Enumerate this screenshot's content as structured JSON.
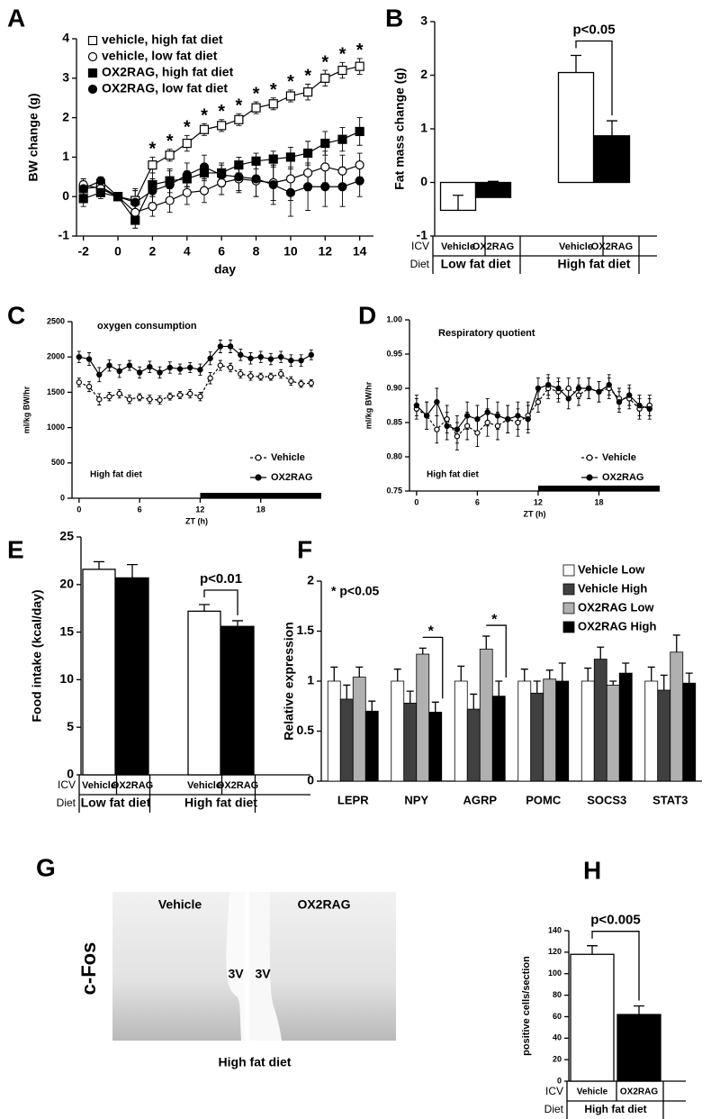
{
  "chart_data": [
    {
      "type": "line",
      "panel": "A",
      "xlabel": "day",
      "ylabel": "BW change (g)",
      "x": [
        -2,
        -1,
        0,
        1,
        2,
        3,
        4,
        5,
        6,
        7,
        8,
        9,
        10,
        11,
        12,
        13,
        14
      ],
      "xlim": [
        -2.4,
        14.8
      ],
      "xticks": [
        -2,
        0,
        2,
        4,
        6,
        8,
        10,
        12,
        14
      ],
      "ylim": [
        -1,
        4
      ],
      "yticks": [
        -1,
        0,
        1,
        2,
        3,
        4
      ],
      "series": [
        {
          "name": "vehicle, high fat diet",
          "marker": "square",
          "color": "#000000",
          "fill": "#ffffff",
          "values": [
            0.2,
            0.25,
            0,
            -0.1,
            0.8,
            1.05,
            1.35,
            1.7,
            1.8,
            1.95,
            2.25,
            2.35,
            2.55,
            2.65,
            3.0,
            3.2,
            3.3
          ],
          "errors": [
            0.15,
            0.15,
            0,
            0.3,
            0.2,
            0.15,
            0.2,
            0.15,
            0.15,
            0.15,
            0.15,
            0.15,
            0.15,
            0.2,
            0.2,
            0.2,
            0.2
          ]
        },
        {
          "name": "vehicle, low fat diet",
          "marker": "circle",
          "color": "#000000",
          "fill": "#ffffff",
          "values": [
            0.3,
            0.2,
            0,
            -0.4,
            -0.25,
            -0.1,
            0.1,
            0.15,
            0.35,
            0.45,
            0.4,
            0.35,
            0.45,
            0.6,
            0.75,
            0.65,
            0.8
          ],
          "errors": [
            0.15,
            0.1,
            0,
            0.2,
            0.25,
            0.3,
            0.3,
            0.3,
            0.3,
            0.35,
            0.4,
            0.45,
            0.55,
            0.45,
            0.4,
            0.4,
            0.3
          ]
        },
        {
          "name": "OX2RAG, high fat diet",
          "marker": "square",
          "color": "#000000",
          "fill": "#000000",
          "values": [
            -0.05,
            0.1,
            0,
            -0.6,
            0.3,
            0.4,
            0.45,
            0.6,
            0.6,
            0.8,
            0.9,
            0.95,
            1.0,
            1.1,
            1.35,
            1.45,
            1.65
          ],
          "errors": [
            0.2,
            0.15,
            0,
            0.2,
            0.3,
            0.3,
            0.2,
            0.2,
            0.2,
            0.2,
            0.2,
            0.2,
            0.25,
            0.3,
            0.3,
            0.3,
            0.35
          ]
        },
        {
          "name": "OX2RAG, low fat diet",
          "marker": "circle",
          "color": "#000000",
          "fill": "#000000",
          "values": [
            0.2,
            0.4,
            0,
            -0.15,
            0.15,
            0.3,
            0.55,
            0.75,
            0.55,
            0.5,
            0.45,
            0.3,
            0.1,
            0.25,
            0.25,
            0.25,
            0.4
          ],
          "errors": [
            0.2,
            0.1,
            0,
            0.3,
            0.3,
            0.35,
            0.3,
            0.3,
            0.3,
            0.35,
            0.45,
            0.5,
            0.6,
            0.6,
            0.5,
            0.5,
            0.4
          ]
        }
      ],
      "annotations": [
        {
          "x": 2,
          "text": "*"
        },
        {
          "x": 3,
          "text": "*"
        },
        {
          "x": 4,
          "text": "*"
        },
        {
          "x": 5,
          "text": "*"
        },
        {
          "x": 6,
          "text": "*"
        },
        {
          "x": 7,
          "text": "*"
        },
        {
          "x": 8,
          "text": "*"
        },
        {
          "x": 9,
          "text": "*"
        },
        {
          "x": 10,
          "text": "*"
        },
        {
          "x": 11,
          "text": "*"
        },
        {
          "x": 12,
          "text": "*"
        },
        {
          "x": 13,
          "text": "*"
        },
        {
          "x": 14,
          "text": "*"
        }
      ]
    },
    {
      "type": "bar",
      "panel": "B",
      "ylabel": "Fat mass change (g)",
      "ylim": [
        -1,
        3
      ],
      "yticks": [
        -1,
        0,
        1,
        2,
        3
      ],
      "row_labels": [
        "ICV",
        "Diet"
      ],
      "categories": [
        "Vehicle",
        "OX2RAG",
        "Vehicle",
        "OX2RAG"
      ],
      "groups": [
        "Low fat diet",
        "High fat diet"
      ],
      "values": [
        -0.52,
        -0.28,
        2.05,
        0.87
      ],
      "errors": [
        0.28,
        0.3,
        0.32,
        0.28
      ],
      "colors": [
        "#ffffff",
        "#000000",
        "#ffffff",
        "#000000"
      ],
      "comparison": "p<0.05"
    },
    {
      "type": "line",
      "panel": "C",
      "title": "oxygen consumption",
      "note": "High fat diet",
      "xlabel": "ZT (h)",
      "ylabel": "ml/kg BW/hr",
      "x": [
        0,
        1,
        2,
        3,
        4,
        5,
        6,
        7,
        8,
        9,
        10,
        11,
        12,
        13,
        14,
        15,
        16,
        17,
        18,
        19,
        20,
        21,
        22,
        23
      ],
      "xlim": [
        -0.7,
        24
      ],
      "xticks": [
        0,
        6,
        12,
        18
      ],
      "ylim": [
        0,
        2500
      ],
      "yticks": [
        0,
        500,
        1000,
        1500,
        2000,
        2500
      ],
      "dark_period": [
        12,
        24
      ],
      "series": [
        {
          "name": "Vehicle",
          "marker": "circle",
          "color": "#000000",
          "fill": "#ffffff",
          "dash": true,
          "values": [
            1640,
            1580,
            1400,
            1440,
            1480,
            1400,
            1430,
            1400,
            1390,
            1440,
            1460,
            1480,
            1440,
            1700,
            1880,
            1850,
            1760,
            1730,
            1720,
            1720,
            1760,
            1660,
            1620,
            1630
          ],
          "errors": [
            60,
            70,
            80,
            60,
            60,
            60,
            50,
            60,
            60,
            50,
            50,
            60,
            60,
            80,
            70,
            60,
            60,
            60,
            50,
            50,
            60,
            60,
            50,
            50
          ]
        },
        {
          "name": "OX2RAG",
          "marker": "circle",
          "color": "#000000",
          "fill": "#000000",
          "dash": false,
          "values": [
            2000,
            1970,
            1750,
            1880,
            1800,
            1880,
            1780,
            1860,
            1780,
            1850,
            1830,
            1850,
            1820,
            1980,
            2150,
            2150,
            2030,
            1980,
            2000,
            1970,
            2000,
            1950,
            1950,
            2030
          ],
          "errors": [
            80,
            90,
            100,
            80,
            90,
            70,
            80,
            80,
            80,
            80,
            70,
            70,
            80,
            90,
            90,
            90,
            80,
            80,
            80,
            80,
            80,
            80,
            80,
            70
          ]
        }
      ]
    },
    {
      "type": "line",
      "panel": "D",
      "title": "Respiratory  quotient",
      "note": "High fat diet",
      "xlabel": "ZT (h)",
      "ylabel": "ml/kg BW/hr",
      "x": [
        0,
        1,
        2,
        3,
        4,
        5,
        6,
        7,
        8,
        9,
        10,
        11,
        12,
        13,
        14,
        15,
        16,
        17,
        18,
        19,
        20,
        21,
        22,
        23
      ],
      "xlim": [
        -0.7,
        24
      ],
      "xticks": [
        0,
        6,
        12,
        18
      ],
      "ylim": [
        0.75,
        1.0
      ],
      "yticks": [
        0.75,
        {
          "value": 0.8,
          "label": "0.80"
        },
        0.85,
        {
          "value": 0.9,
          "label": "0.90"
        },
        0.95,
        {
          "value": 1.0,
          "label": "1.00"
        }
      ],
      "dark_period": [
        12,
        24
      ],
      "series": [
        {
          "name": "Vehicle",
          "marker": "circle",
          "color": "#000000",
          "fill": "#ffffff",
          "dash": true,
          "values": [
            0.87,
            0.86,
            0.84,
            0.855,
            0.83,
            0.845,
            0.835,
            0.85,
            0.845,
            0.855,
            0.85,
            0.86,
            0.88,
            0.9,
            0.895,
            0.9,
            0.89,
            0.9,
            0.895,
            0.9,
            0.885,
            0.885,
            0.87,
            0.875
          ],
          "errors": [
            0.015,
            0.02,
            0.02,
            0.02,
            0.02,
            0.02,
            0.02,
            0.02,
            0.02,
            0.02,
            0.02,
            0.02,
            0.015,
            0.015,
            0.015,
            0.015,
            0.015,
            0.015,
            0.015,
            0.015,
            0.015,
            0.015,
            0.015,
            0.015
          ]
        },
        {
          "name": "OX2RAG",
          "marker": "circle",
          "color": "#000000",
          "fill": "#000000",
          "dash": false,
          "values": [
            0.875,
            0.86,
            0.88,
            0.845,
            0.84,
            0.86,
            0.855,
            0.865,
            0.86,
            0.855,
            0.86,
            0.855,
            0.9,
            0.905,
            0.9,
            0.885,
            0.9,
            0.9,
            0.895,
            0.905,
            0.88,
            0.89,
            0.875,
            0.87
          ],
          "errors": [
            0.015,
            0.02,
            0.02,
            0.02,
            0.02,
            0.02,
            0.02,
            0.02,
            0.02,
            0.02,
            0.02,
            0.02,
            0.015,
            0.015,
            0.015,
            0.015,
            0.015,
            0.015,
            0.015,
            0.015,
            0.015,
            0.015,
            0.015,
            0.015
          ]
        }
      ]
    },
    {
      "type": "bar",
      "panel": "E",
      "ylabel": "Food intake (kcal/day)",
      "ylim": [
        0,
        25
      ],
      "yticks": [
        0,
        5,
        10,
        15,
        20,
        25
      ],
      "row_labels": [
        "ICV",
        "Diet"
      ],
      "categories": [
        "Vehicle",
        "OX2RAG",
        "Vehicle",
        "OX2RAG"
      ],
      "groups": [
        "Low fat diet",
        "High fat diet"
      ],
      "values": [
        21.6,
        20.7,
        17.2,
        15.6
      ],
      "errors": [
        0.8,
        1.4,
        0.7,
        0.6
      ],
      "colors": [
        "#ffffff",
        "#000000",
        "#ffffff",
        "#000000"
      ],
      "comparison": "p<0.01"
    },
    {
      "type": "grouped_bar",
      "panel": "F",
      "ylabel": "Relative expression",
      "note": "* p<0.05",
      "ylim": [
        0,
        2
      ],
      "yticks": [
        0,
        0.5,
        1,
        1.5,
        2
      ],
      "categories": [
        "LEPR",
        "NPY",
        "AGRP",
        "POMC",
        "SOCS3",
        "STAT3"
      ],
      "series": [
        {
          "name": "Vehicle Low",
          "color": "#ffffff",
          "values": [
            1,
            1,
            1,
            1,
            1,
            1
          ],
          "errors": [
            0.14,
            0.12,
            0.15,
            0.12,
            0.13,
            0.14
          ]
        },
        {
          "name": "Vehicle High",
          "color": "#404040",
          "values": [
            0.82,
            0.78,
            0.72,
            0.88,
            1.22,
            0.91
          ],
          "errors": [
            0.14,
            0.12,
            0.15,
            0.12,
            0.12,
            0.15
          ]
        },
        {
          "name": "OX2RAG Low",
          "color": "#b0b0b0",
          "values": [
            1.04,
            1.27,
            1.32,
            1.02,
            0.96,
            1.29
          ],
          "errors": [
            0.1,
            0.06,
            0.13,
            0.09,
            0.04,
            0.17
          ]
        },
        {
          "name": "OX2RAG High",
          "color": "#000000",
          "values": [
            0.7,
            0.69,
            0.85,
            1.0,
            1.08,
            0.98
          ],
          "errors": [
            0.1,
            0.1,
            0.15,
            0.18,
            0.1,
            0.1
          ]
        }
      ],
      "annotations": [
        {
          "category": "NPY",
          "text": "*"
        },
        {
          "category": "AGRP",
          "text": "*"
        }
      ]
    },
    {
      "type": "bar",
      "panel": "H",
      "ylabel": "positive cells/section",
      "ylim": [
        0,
        140
      ],
      "yticks": [
        0,
        20,
        40,
        60,
        80,
        100,
        120,
        140
      ],
      "row_labels": [
        "ICV",
        "Diet"
      ],
      "categories": [
        "Vehicle",
        "OX2RAG"
      ],
      "groups": [
        "High fat diet"
      ],
      "values": [
        118,
        62
      ],
      "errors": [
        8,
        8
      ],
      "colors": [
        "#ffffff",
        "#000000"
      ],
      "comparison": "p<0.005"
    }
  ],
  "image_panel": {
    "panel": "G",
    "columns": [
      "Vehicle",
      "OX2RAG"
    ],
    "stain": "c-Fos",
    "ventricle_labels": [
      "3V",
      "3V"
    ],
    "caption": "High fat diet"
  }
}
